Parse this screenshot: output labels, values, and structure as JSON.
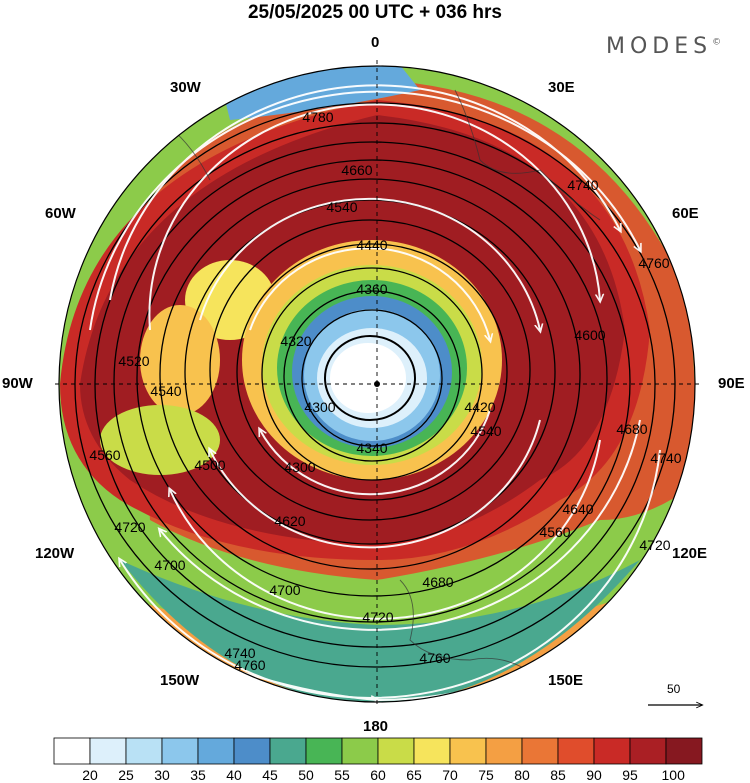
{
  "title": "25/05/2025  00 UTC  + 036 hrs",
  "logo": "MODES",
  "logo_mark": "©",
  "longitude_labels": {
    "n": "0",
    "e30": "30E",
    "e60": "60E",
    "e90": "90E",
    "e120": "120E",
    "e150": "150E",
    "s": "180",
    "w150": "150W",
    "w120": "120W",
    "w90": "90W",
    "w60": "60W",
    "w30": "30W"
  },
  "contour_labels": [
    "4780",
    "4660",
    "4740",
    "4540",
    "4760",
    "4440",
    "4360",
    "4320",
    "4300",
    "4300",
    "4340",
    "4420",
    "4540",
    "4600",
    "4680",
    "4640",
    "4560",
    "4680",
    "4700",
    "4720",
    "4740",
    "4760",
    "4760",
    "4720",
    "4700",
    "4620",
    "4520",
    "4540",
    "4560",
    "4500",
    "4740",
    "4720"
  ],
  "vector_reference": "50",
  "colorbar": {
    "ticks": [
      "20",
      "25",
      "30",
      "35",
      "40",
      "45",
      "50",
      "55",
      "60",
      "65",
      "70",
      "75",
      "80",
      "85",
      "90",
      "95",
      "100"
    ],
    "colors": [
      "#ffffff",
      "#ddf0fb",
      "#b9e1f5",
      "#8cc7ec",
      "#64a9dc",
      "#4d8dc9",
      "#4aa88f",
      "#48b555",
      "#8ccb4a",
      "#c9dc48",
      "#f6e45c",
      "#f8c24e",
      "#f49f43",
      "#ea7636",
      "#e04d2c",
      "#c92a26",
      "#aa1f24",
      "#861820"
    ]
  },
  "colors": {
    "jet_core": "#a01d22",
    "land": "#333333",
    "contour": "#000000",
    "streamline": "#ffffff"
  }
}
